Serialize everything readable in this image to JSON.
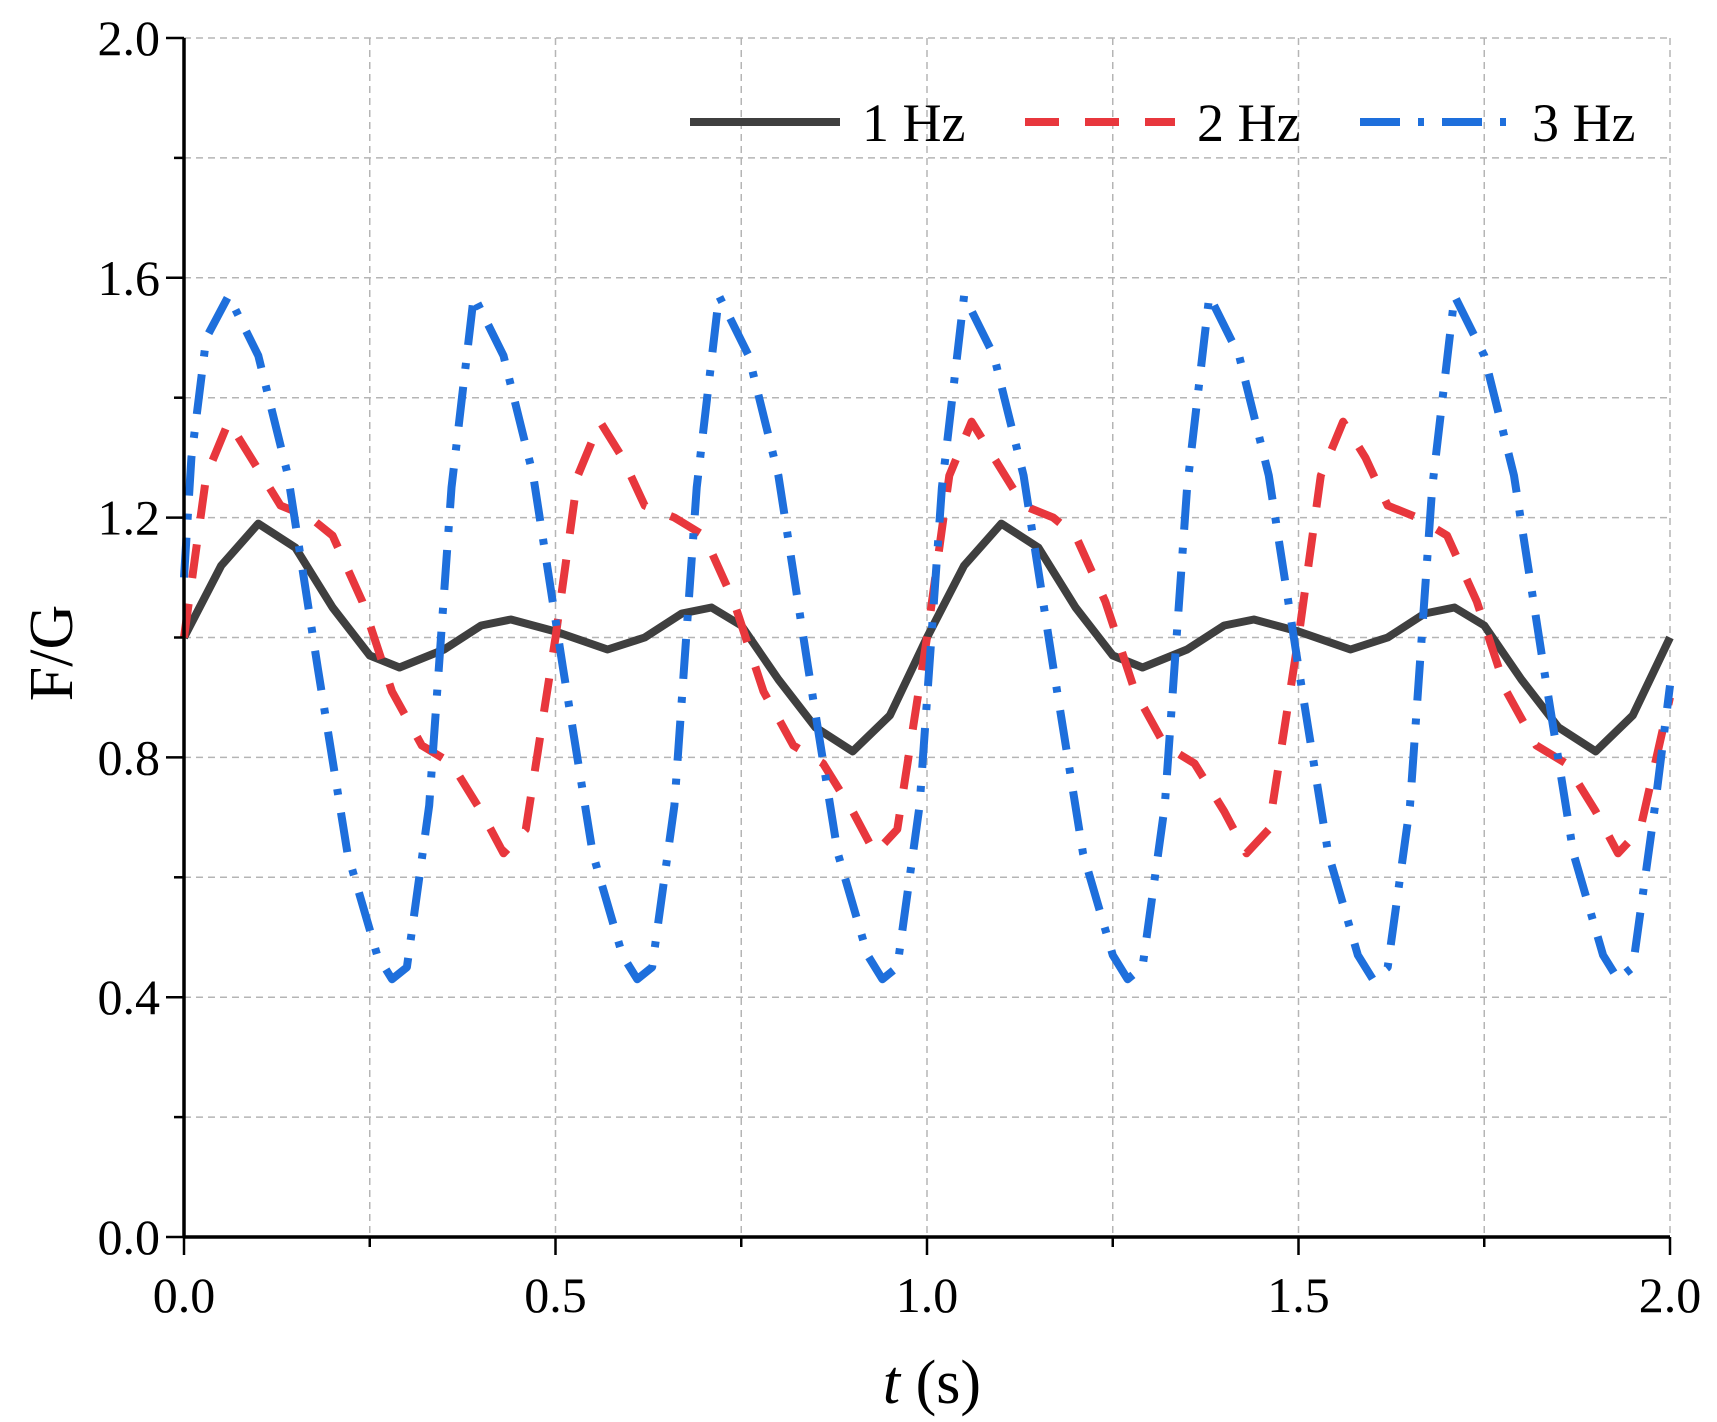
{
  "chart_data": {
    "type": "line",
    "title": "",
    "xlabel_italic": "t",
    "xlabel_rest": " (s)",
    "ylabel": "F/G",
    "xlim": [
      0,
      2
    ],
    "ylim": [
      0,
      2
    ],
    "x_ticks": [
      0.0,
      0.5,
      1.0,
      1.5,
      2.0
    ],
    "x_tick_labels": [
      "0.0",
      "0.5",
      "1.0",
      "1.5",
      "2.0"
    ],
    "x_minor_ticks": [
      0.25,
      0.75,
      1.25,
      1.75
    ],
    "y_ticks": [
      0.0,
      0.4,
      0.8,
      1.2,
      1.6,
      2.0
    ],
    "y_tick_labels": [
      "0.0",
      "0.4",
      "0.8",
      "1.2",
      "1.6",
      "2.0"
    ],
    "y_minor_ticks": [
      0.2,
      0.6,
      1.0,
      1.4,
      1.8
    ],
    "grid": true,
    "legend_position": "top-right",
    "series": [
      {
        "name": "1 Hz",
        "color": "#3f3f3f",
        "line_style": "solid",
        "x": [
          0.0,
          0.05,
          0.1,
          0.15,
          0.2,
          0.25,
          0.29,
          0.35,
          0.4,
          0.44,
          0.5,
          0.57,
          0.62,
          0.67,
          0.71,
          0.75,
          0.8,
          0.85,
          0.9,
          0.95,
          1.0,
          1.05,
          1.1,
          1.15,
          1.2,
          1.25,
          1.29,
          1.35,
          1.4,
          1.44,
          1.5,
          1.57,
          1.62,
          1.67,
          1.71,
          1.75,
          1.8,
          1.85,
          1.9,
          1.95,
          2.0
        ],
        "y": [
          1.0,
          1.12,
          1.19,
          1.15,
          1.05,
          0.97,
          0.95,
          0.98,
          1.02,
          1.03,
          1.01,
          0.98,
          1.0,
          1.04,
          1.05,
          1.02,
          0.93,
          0.85,
          0.81,
          0.87,
          1.0,
          1.12,
          1.19,
          1.15,
          1.05,
          0.97,
          0.95,
          0.98,
          1.02,
          1.03,
          1.01,
          0.98,
          1.0,
          1.04,
          1.05,
          1.02,
          0.93,
          0.85,
          0.81,
          0.87,
          1.0
        ]
      },
      {
        "name": "2 Hz",
        "color": "#e8373d",
        "line_style": "dashed",
        "x": [
          0.0,
          0.03,
          0.06,
          0.09,
          0.13,
          0.17,
          0.2,
          0.24,
          0.28,
          0.32,
          0.36,
          0.4,
          0.43,
          0.46,
          0.5,
          0.53,
          0.56,
          0.59,
          0.62,
          0.66,
          0.7,
          0.74,
          0.78,
          0.82,
          0.86,
          0.9,
          0.93,
          0.96,
          1.0,
          1.03,
          1.06,
          1.09,
          1.13,
          1.17,
          1.2,
          1.24,
          1.28,
          1.32,
          1.36,
          1.4,
          1.43,
          1.46,
          1.5,
          1.53,
          1.56,
          1.59,
          1.62,
          1.66,
          1.7,
          1.74,
          1.78,
          1.82,
          1.86,
          1.9,
          1.93,
          1.96,
          2.0
        ],
        "y": [
          1.0,
          1.27,
          1.36,
          1.3,
          1.22,
          1.2,
          1.17,
          1.06,
          0.91,
          0.82,
          0.79,
          0.71,
          0.64,
          0.68,
          1.0,
          1.27,
          1.36,
          1.3,
          1.22,
          1.2,
          1.17,
          1.06,
          0.91,
          0.82,
          0.79,
          0.71,
          0.64,
          0.68,
          1.0,
          1.27,
          1.36,
          1.3,
          1.22,
          1.2,
          1.17,
          1.06,
          0.91,
          0.82,
          0.79,
          0.71,
          0.64,
          0.68,
          1.0,
          1.27,
          1.36,
          1.3,
          1.22,
          1.2,
          1.17,
          1.06,
          0.91,
          0.82,
          0.79,
          0.71,
          0.64,
          0.68,
          0.9
        ]
      },
      {
        "name": "3 Hz",
        "color": "#1e6fdc",
        "line_style": "dash-dot",
        "x": [
          0.0,
          0.01,
          0.03,
          0.06,
          0.1,
          0.14,
          0.18,
          0.22,
          0.26,
          0.28,
          0.3,
          0.33,
          0.36,
          0.39,
          0.43,
          0.47,
          0.51,
          0.55,
          0.59,
          0.61,
          0.63,
          0.66,
          0.69,
          0.72,
          0.76,
          0.8,
          0.84,
          0.88,
          0.92,
          0.94,
          0.96,
          0.99,
          1.02,
          1.05,
          1.09,
          1.13,
          1.17,
          1.21,
          1.25,
          1.27,
          1.29,
          1.32,
          1.35,
          1.38,
          1.42,
          1.46,
          1.5,
          1.54,
          1.58,
          1.6,
          1.62,
          1.65,
          1.68,
          1.71,
          1.75,
          1.79,
          1.83,
          1.87,
          1.91,
          1.93,
          1.95,
          1.98,
          2.0
        ],
        "y": [
          1.1,
          1.3,
          1.5,
          1.57,
          1.47,
          1.27,
          0.95,
          0.64,
          0.47,
          0.43,
          0.45,
          0.72,
          1.25,
          1.57,
          1.47,
          1.27,
          0.95,
          0.64,
          0.47,
          0.43,
          0.45,
          0.72,
          1.25,
          1.57,
          1.47,
          1.27,
          0.95,
          0.64,
          0.47,
          0.43,
          0.45,
          0.72,
          1.25,
          1.57,
          1.47,
          1.27,
          0.95,
          0.64,
          0.47,
          0.43,
          0.45,
          0.72,
          1.25,
          1.57,
          1.47,
          1.27,
          0.95,
          0.64,
          0.47,
          0.43,
          0.45,
          0.72,
          1.25,
          1.57,
          1.47,
          1.27,
          0.95,
          0.64,
          0.47,
          0.43,
          0.45,
          0.72,
          0.92
        ]
      }
    ]
  }
}
